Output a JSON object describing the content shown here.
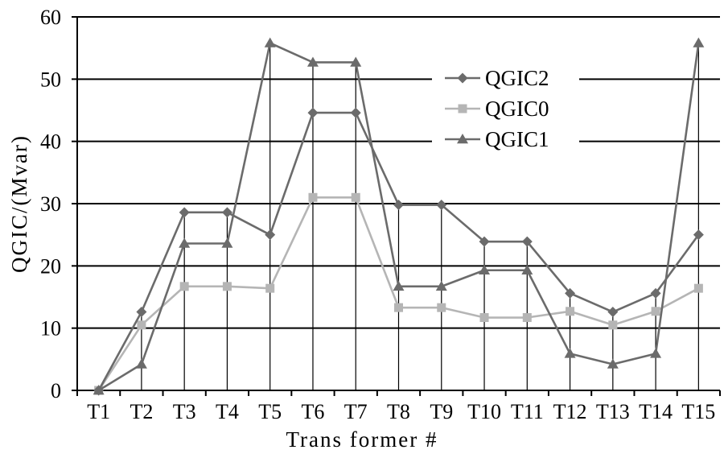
{
  "chart_data": {
    "type": "line",
    "title": "",
    "xlabel": "Trans former #",
    "ylabel": "QGIC/(Mvar)",
    "ylim": [
      0,
      60
    ],
    "yticks": [
      0,
      10,
      20,
      30,
      40,
      50,
      60
    ],
    "grid": "horizontal",
    "legend_position": "top-right",
    "categories": [
      "T1",
      "T2",
      "T3",
      "T4",
      "T5",
      "T6",
      "T7",
      "T8",
      "T9",
      "T10",
      "T11",
      "T12",
      "T13",
      "T14",
      "T15"
    ],
    "series": [
      {
        "name": "QGIC2",
        "marker": "diamond",
        "color": "#6b6b6b",
        "values": [
          0,
          12.6,
          28.6,
          28.6,
          25.0,
          44.6,
          44.6,
          29.8,
          29.8,
          23.9,
          23.9,
          15.6,
          12.6,
          15.6,
          25.0
        ]
      },
      {
        "name": "QGIC0",
        "marker": "square",
        "color": "#b5b5b5",
        "values": [
          0,
          10.5,
          16.7,
          16.7,
          16.4,
          31.0,
          31.0,
          13.3,
          13.3,
          11.7,
          11.7,
          12.7,
          10.5,
          12.7,
          16.4
        ]
      },
      {
        "name": "QGIC1",
        "marker": "triangle",
        "color": "#6b6b6b",
        "values": [
          0,
          4.2,
          23.6,
          23.6,
          55.8,
          52.7,
          52.7,
          16.7,
          16.7,
          19.3,
          19.3,
          5.9,
          4.2,
          5.9,
          55.8
        ]
      }
    ]
  }
}
